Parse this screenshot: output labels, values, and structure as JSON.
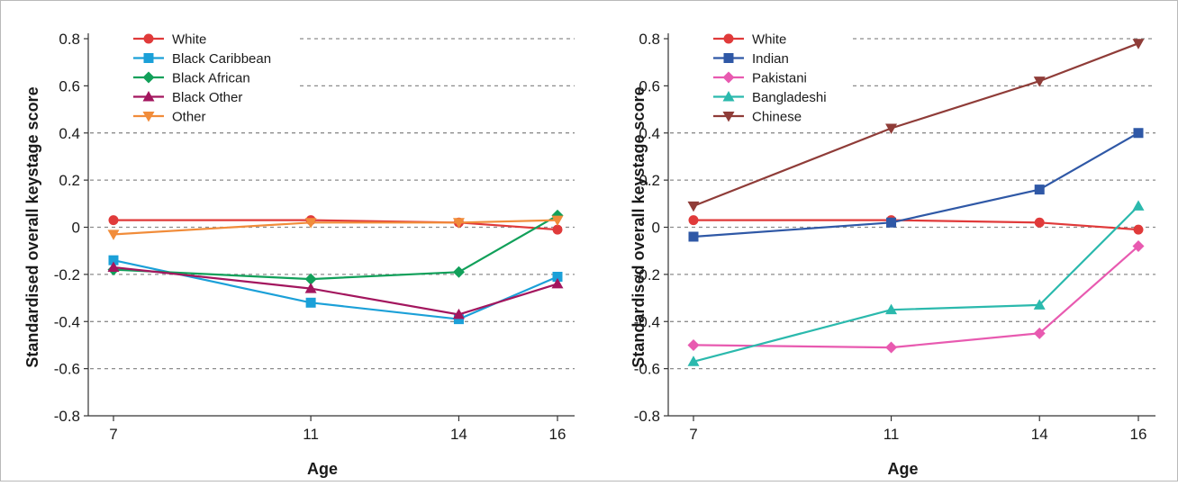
{
  "chart_data": [
    {
      "type": "line",
      "xlabel": "Age",
      "ylabel": "Standardised overall keystage score",
      "x": [
        7,
        11,
        14,
        16
      ],
      "xticks": [
        "7",
        "11",
        "14",
        "16"
      ],
      "ylim": [
        -0.8,
        0.8
      ],
      "yticks": [
        "0.8",
        "0.6",
        "0.4",
        "0.2",
        "0",
        "-0.2",
        "-0.4",
        "-0.6",
        "-0.8"
      ],
      "grid": "horizontal dashed",
      "legend": "top-left",
      "series": [
        {
          "name": "White",
          "values": [
            0.03,
            0.03,
            0.02,
            -0.01
          ],
          "color": "#e03a3a",
          "marker": "circle"
        },
        {
          "name": "Black Caribbean",
          "values": [
            -0.14,
            -0.32,
            -0.39,
            -0.21
          ],
          "color": "#1ba0d8",
          "marker": "square"
        },
        {
          "name": "Black African",
          "values": [
            -0.18,
            -0.22,
            -0.19,
            0.05
          ],
          "color": "#11a05a",
          "marker": "diamond"
        },
        {
          "name": "Black Other",
          "values": [
            -0.17,
            -0.26,
            -0.37,
            -0.24
          ],
          "color": "#a3165e",
          "marker": "triangle-up"
        },
        {
          "name": "Other",
          "values": [
            -0.03,
            0.02,
            0.02,
            0.03
          ],
          "color": "#f18c3a",
          "marker": "triangle-down"
        }
      ]
    },
    {
      "type": "line",
      "xlabel": "Age",
      "ylabel": "Standardised overall keystage score",
      "x": [
        7,
        11,
        14,
        16
      ],
      "xticks": [
        "7",
        "11",
        "14",
        "16"
      ],
      "ylim": [
        -0.8,
        0.8
      ],
      "yticks": [
        "0.8",
        "0.6",
        "0.4",
        "0.2",
        "0",
        "-0.2",
        "-0.4",
        "-0.6",
        "-0.8"
      ],
      "grid": "horizontal dashed",
      "legend": "top-left",
      "series": [
        {
          "name": "White",
          "values": [
            0.03,
            0.03,
            0.02,
            -0.01
          ],
          "color": "#e03a3a",
          "marker": "circle"
        },
        {
          "name": "Indian",
          "values": [
            -0.04,
            0.02,
            0.16,
            0.4
          ],
          "color": "#2f58a6",
          "marker": "square"
        },
        {
          "name": "Pakistani",
          "values": [
            -0.5,
            -0.51,
            -0.45,
            -0.08
          ],
          "color": "#e85ab0",
          "marker": "diamond"
        },
        {
          "name": "Bangladeshi",
          "values": [
            -0.57,
            -0.35,
            -0.33,
            0.09
          ],
          "color": "#2bb9ad",
          "marker": "triangle-up"
        },
        {
          "name": "Chinese",
          "values": [
            0.09,
            0.42,
            0.62,
            0.78
          ],
          "color": "#8f3c38",
          "marker": "triangle-down"
        }
      ]
    }
  ]
}
